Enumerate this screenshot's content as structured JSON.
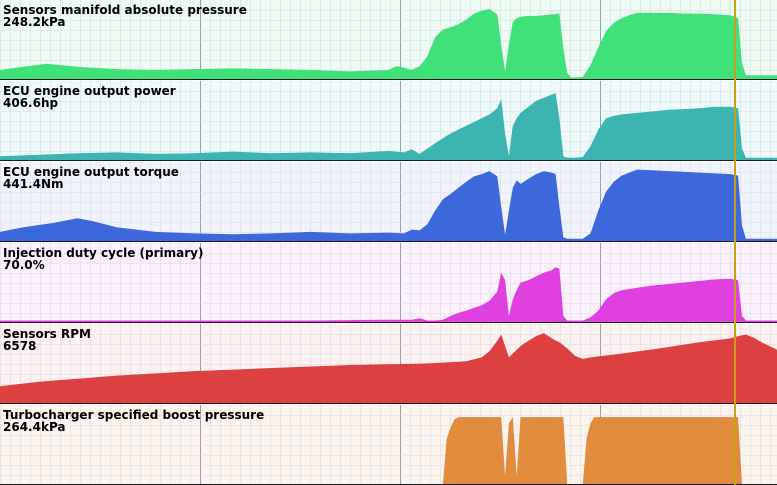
{
  "cursor_time": 0.945,
  "chart_data": [
    {
      "type": "area",
      "title": "Sensors manifold absolute pressure",
      "readout": "248.2kPa",
      "color": "#40e07a",
      "background": "#edfbf2",
      "x": [
        0,
        0.03,
        0.06,
        0.1,
        0.15,
        0.2,
        0.25,
        0.3,
        0.35,
        0.4,
        0.45,
        0.5,
        0.51,
        0.52,
        0.53,
        0.54,
        0.55,
        0.56,
        0.57,
        0.58,
        0.59,
        0.6,
        0.61,
        0.62,
        0.63,
        0.64,
        0.645,
        0.65,
        0.655,
        0.66,
        0.665,
        0.67,
        0.68,
        0.69,
        0.7,
        0.71,
        0.72,
        0.725,
        0.73,
        0.735,
        0.74,
        0.75,
        0.76,
        0.77,
        0.78,
        0.79,
        0.8,
        0.81,
        0.82,
        0.84,
        0.86,
        0.88,
        0.9,
        0.92,
        0.94,
        0.95,
        0.955,
        0.96,
        0.97,
        0.98,
        1
      ],
      "values": [
        12,
        16,
        20,
        16,
        13,
        12,
        13,
        14,
        13,
        12,
        10,
        12,
        17,
        15,
        12,
        17,
        30,
        55,
        65,
        68,
        72,
        78,
        86,
        90,
        92,
        85,
        45,
        10,
        45,
        75,
        80,
        82,
        83,
        83,
        84,
        85,
        86,
        40,
        8,
        2,
        2,
        3,
        18,
        42,
        63,
        74,
        80,
        84,
        87,
        87,
        87,
        86,
        86,
        85,
        84,
        80,
        20,
        5,
        5,
        5,
        5
      ],
      "ylim": [
        0,
        100
      ]
    },
    {
      "type": "area",
      "title": "ECU engine output power",
      "readout": "406.6hp",
      "color": "#3cb4b0",
      "background": "#eefafa",
      "x": [
        0,
        0.05,
        0.1,
        0.15,
        0.2,
        0.25,
        0.3,
        0.35,
        0.4,
        0.45,
        0.5,
        0.52,
        0.53,
        0.54,
        0.56,
        0.58,
        0.6,
        0.62,
        0.63,
        0.64,
        0.645,
        0.65,
        0.655,
        0.66,
        0.665,
        0.67,
        0.68,
        0.69,
        0.7,
        0.71,
        0.715,
        0.72,
        0.725,
        0.73,
        0.735,
        0.74,
        0.75,
        0.76,
        0.77,
        0.78,
        0.79,
        0.8,
        0.82,
        0.84,
        0.86,
        0.88,
        0.9,
        0.92,
        0.94,
        0.95,
        0.955,
        0.96,
        1
      ],
      "values": [
        5,
        7,
        9,
        10,
        8,
        9,
        11,
        9,
        10,
        9,
        12,
        10,
        14,
        8,
        22,
        35,
        45,
        55,
        60,
        68,
        80,
        35,
        5,
        45,
        55,
        62,
        70,
        78,
        82,
        86,
        88,
        55,
        5,
        3,
        3,
        3,
        4,
        18,
        40,
        55,
        58,
        60,
        62,
        64,
        66,
        67,
        68,
        70,
        70,
        68,
        15,
        3,
        3
      ],
      "ylim": [
        0,
        100
      ]
    },
    {
      "type": "area",
      "title": "ECU engine output torque",
      "readout": "441.4Nm",
      "color": "#3c68dc",
      "background": "#f0f2fc",
      "x": [
        0,
        0.03,
        0.07,
        0.1,
        0.12,
        0.15,
        0.2,
        0.25,
        0.3,
        0.35,
        0.4,
        0.45,
        0.5,
        0.52,
        0.53,
        0.54,
        0.55,
        0.56,
        0.57,
        0.58,
        0.59,
        0.6,
        0.61,
        0.62,
        0.63,
        0.64,
        0.645,
        0.65,
        0.655,
        0.66,
        0.665,
        0.67,
        0.68,
        0.69,
        0.7,
        0.71,
        0.715,
        0.72,
        0.725,
        0.73,
        0.735,
        0.74,
        0.75,
        0.76,
        0.77,
        0.78,
        0.79,
        0.8,
        0.82,
        0.84,
        0.86,
        0.88,
        0.9,
        0.92,
        0.94,
        0.95,
        0.955,
        0.96,
        1
      ],
      "values": [
        12,
        18,
        24,
        30,
        26,
        18,
        12,
        10,
        9,
        10,
        12,
        10,
        11,
        10,
        15,
        14,
        22,
        40,
        55,
        62,
        70,
        78,
        85,
        88,
        92,
        85,
        45,
        8,
        40,
        70,
        80,
        75,
        82,
        88,
        92,
        90,
        88,
        45,
        5,
        3,
        3,
        3,
        3,
        10,
        40,
        65,
        78,
        86,
        94,
        93,
        92,
        91,
        90,
        89,
        88,
        86,
        20,
        3,
        3
      ],
      "ylim": [
        0,
        100
      ]
    },
    {
      "type": "area",
      "title": "Injection duty cycle (primary)",
      "readout": "70.0%",
      "color": "#e040e0",
      "background": "#fcf0fc",
      "x": [
        0,
        0.1,
        0.2,
        0.3,
        0.4,
        0.5,
        0.52,
        0.53,
        0.54,
        0.55,
        0.56,
        0.57,
        0.58,
        0.59,
        0.6,
        0.62,
        0.63,
        0.64,
        0.645,
        0.65,
        0.655,
        0.66,
        0.665,
        0.67,
        0.68,
        0.69,
        0.7,
        0.71,
        0.715,
        0.72,
        0.725,
        0.73,
        0.735,
        0.74,
        0.75,
        0.76,
        0.77,
        0.78,
        0.79,
        0.8,
        0.82,
        0.84,
        0.86,
        0.88,
        0.9,
        0.92,
        0.94,
        0.95,
        0.955,
        0.96,
        1
      ],
      "values": [
        2,
        2,
        2,
        2,
        2,
        3,
        3,
        3,
        5,
        2,
        2,
        3,
        8,
        12,
        15,
        22,
        28,
        40,
        65,
        55,
        8,
        30,
        42,
        52,
        55,
        60,
        65,
        68,
        72,
        70,
        8,
        2,
        2,
        2,
        2,
        6,
        15,
        30,
        38,
        42,
        45,
        48,
        50,
        52,
        54,
        56,
        57,
        55,
        8,
        2,
        2
      ],
      "ylim": [
        0,
        100
      ]
    },
    {
      "type": "area",
      "title": "Sensors RPM",
      "readout": "6578",
      "color": "#dc4040",
      "background": "#fcf0f0",
      "x": [
        0,
        0.05,
        0.1,
        0.15,
        0.2,
        0.25,
        0.3,
        0.35,
        0.4,
        0.45,
        0.5,
        0.55,
        0.6,
        0.62,
        0.63,
        0.64,
        0.645,
        0.65,
        0.655,
        0.66,
        0.67,
        0.68,
        0.69,
        0.7,
        0.71,
        0.72,
        0.73,
        0.74,
        0.75,
        0.76,
        0.8,
        0.85,
        0.9,
        0.94,
        0.95,
        0.96,
        0.97,
        0.98,
        1
      ],
      "values": [
        22,
        28,
        32,
        36,
        39,
        42,
        44,
        46,
        48,
        50,
        51,
        52,
        55,
        60,
        68,
        82,
        90,
        75,
        60,
        65,
        75,
        82,
        88,
        92,
        85,
        80,
        72,
        62,
        58,
        60,
        65,
        72,
        80,
        85,
        88,
        90,
        86,
        80,
        70
      ],
      "ylim": [
        0,
        100
      ]
    },
    {
      "type": "area",
      "title": "Turbocharger specified boost pressure",
      "readout": "264.4kPa",
      "color": "#e08c3c",
      "background": "#fcf4ec",
      "x": [
        0,
        0.56,
        0.57,
        0.575,
        0.58,
        0.585,
        0.59,
        0.6,
        0.62,
        0.64,
        0.645,
        0.65,
        0.655,
        0.66,
        0.665,
        0.67,
        0.7,
        0.72,
        0.725,
        0.73,
        0.74,
        0.75,
        0.755,
        0.76,
        0.765,
        0.77,
        0.8,
        0.9,
        0.94,
        0.95,
        0.955,
        1
      ],
      "values": [
        0,
        0,
        0,
        60,
        75,
        85,
        88,
        88,
        88,
        88,
        88,
        10,
        80,
        88,
        10,
        88,
        88,
        88,
        88,
        0,
        0,
        0,
        60,
        80,
        88,
        88,
        88,
        88,
        88,
        88,
        0,
        0
      ],
      "ylim": [
        0,
        100
      ]
    }
  ]
}
